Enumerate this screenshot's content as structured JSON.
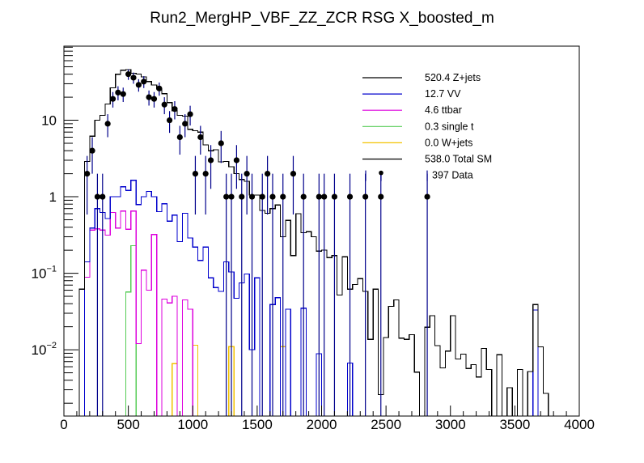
{
  "chart_data": {
    "type": "histogram-stack-log",
    "title": "Run2_MergHP_VBF_ZZ_ZCR RSG  X_boosted_m",
    "xlabel": "",
    "ylabel": "",
    "xlim": [
      0,
      4000
    ],
    "ylim": [
      0.00136,
      93
    ],
    "ylog": true,
    "bin_width": 40,
    "x_ticks": [
      0,
      500,
      1000,
      1500,
      2000,
      2500,
      3000,
      3500,
      4000
    ],
    "x_tick_labels": [
      "0",
      "500",
      "1000",
      "1500",
      "2000",
      "2500",
      "3000",
      "3500",
      "4000"
    ],
    "y_ticks": [
      {
        "value": 10,
        "base": "10",
        "exp": ""
      },
      {
        "value": 1,
        "base": "1",
        "exp": ""
      },
      {
        "value": 0.1,
        "base": "10",
        "exp": "−1"
      },
      {
        "value": 0.01,
        "base": "10",
        "exp": "−2"
      }
    ],
    "grid": false,
    "legend_position": "top-right",
    "series": [
      {
        "name": "Z+jets",
        "legend": "520.4 Z+jets",
        "color": "#000000",
        "values": [
          0,
          0,
          0,
          0.062,
          2.9,
          6.2,
          10.0,
          11.6,
          16.3,
          26.6,
          39.8,
          45,
          46,
          41,
          40,
          36.8,
          32,
          28.9,
          25.7,
          22.2,
          17.0,
          13.3,
          11.6,
          11.3,
          7.6,
          7.3,
          7.0,
          4.75,
          4.0,
          4.1,
          2.85,
          2.9,
          2.46,
          2.01,
          1.68,
          1.59,
          1.05,
          1.05,
          0.66,
          0.61,
          0.7,
          0.78,
          0.3,
          0.49,
          0.17,
          0.6,
          0.34,
          0.35,
          0.3,
          0.195,
          0.2,
          0.16,
          0.17,
          0.052,
          0.164,
          0.062,
          0.071,
          0.085,
          0.058,
          0.0137,
          0.062,
          0.0026,
          0.0144,
          0.037,
          0.045,
          0.0142,
          0.0137,
          0.0157,
          0.0051,
          0,
          0.0197,
          0.0278,
          0.0113,
          0.0058,
          0.0096,
          0.0278,
          0.0076,
          0.0088,
          0.0057,
          0.0064,
          0.0044,
          0.0104,
          0.0055,
          0,
          0.0086,
          0,
          0.0032,
          0,
          0.0055,
          0,
          0.0052,
          0.039,
          0.0109,
          0.0027,
          0,
          0,
          0,
          0,
          0,
          0
        ]
      },
      {
        "name": "VV",
        "legend": "12.7 VV",
        "color": "#0000cc",
        "values": [
          0,
          0,
          0,
          0,
          0.141,
          0.39,
          0.7,
          0.625,
          0.52,
          1.0,
          1.0,
          1.35,
          1.21,
          1.64,
          0.79,
          1.0,
          1.17,
          1.0,
          0.64,
          0.81,
          0.48,
          0.575,
          0.26,
          0.61,
          0.29,
          0.22,
          0.147,
          0.22,
          0.087,
          0.065,
          0.058,
          0.141,
          0.104,
          0.047,
          0.075,
          0.098,
          0.01,
          0.087,
          0,
          0,
          0.039,
          0.048,
          0,
          0.034,
          0,
          0,
          0.035,
          0,
          0,
          0.0089,
          0,
          0,
          0,
          0,
          0,
          0.0067,
          0,
          0,
          0,
          0,
          0,
          0,
          0,
          0,
          0,
          0,
          0,
          0,
          0,
          0,
          0,
          0,
          0,
          0,
          0,
          0,
          0,
          0,
          0,
          0,
          0,
          0,
          0,
          0,
          0,
          0,
          0,
          0,
          0,
          0,
          0,
          0.033,
          0,
          0,
          0,
          0,
          0,
          0,
          0,
          0
        ]
      },
      {
        "name": "ttbar",
        "legend": "4.6 ttbar",
        "color": "#dd00dd",
        "values": [
          0,
          0,
          0,
          0,
          0.089,
          0.366,
          0.38,
          0.366,
          0.316,
          0.625,
          0.39,
          0.65,
          0.375,
          0.65,
          0.012,
          0.11,
          0.06,
          0.32,
          0,
          0.046,
          0.041,
          0.05,
          0,
          0.045,
          0.034,
          0,
          0,
          0,
          0,
          0,
          0,
          0,
          0,
          0,
          0,
          0,
          0,
          0,
          0,
          0,
          0,
          0,
          0,
          0,
          0,
          0,
          0,
          0,
          0,
          0,
          0,
          0,
          0,
          0,
          0,
          0,
          0,
          0,
          0,
          0,
          0,
          0,
          0,
          0,
          0,
          0,
          0,
          0,
          0,
          0,
          0,
          0,
          0,
          0,
          0,
          0,
          0,
          0,
          0,
          0,
          0,
          0,
          0,
          0,
          0,
          0,
          0,
          0,
          0,
          0,
          0,
          0,
          0,
          0,
          0,
          0,
          0,
          0,
          0,
          0
        ]
      },
      {
        "name": "single t",
        "legend": "0.3 single t",
        "color": "#55cc55",
        "values": [
          0,
          0,
          0,
          0,
          0,
          0,
          0,
          0,
          0,
          0,
          0,
          0,
          0.057,
          0.23,
          0,
          0,
          0,
          0,
          0,
          0,
          0,
          0,
          0,
          0,
          0,
          0,
          0,
          0,
          0,
          0,
          0,
          0,
          0,
          0,
          0,
          0,
          0,
          0,
          0,
          0,
          0,
          0,
          0,
          0,
          0,
          0,
          0,
          0,
          0,
          0,
          0,
          0,
          0,
          0,
          0,
          0,
          0,
          0,
          0,
          0,
          0,
          0,
          0,
          0,
          0,
          0,
          0,
          0,
          0,
          0,
          0,
          0,
          0,
          0,
          0,
          0,
          0,
          0,
          0,
          0,
          0,
          0,
          0,
          0,
          0,
          0,
          0,
          0,
          0,
          0,
          0,
          0,
          0,
          0,
          0,
          0,
          0,
          0,
          0,
          0
        ]
      },
      {
        "name": "W+jets",
        "legend": "0.0 W+jets",
        "color": "#f2c200",
        "values": [
          0,
          0,
          0,
          0,
          0,
          0,
          0,
          0,
          0,
          0,
          0,
          0,
          0,
          0,
          0,
          0,
          0,
          0,
          0,
          0,
          0,
          0.0066,
          0,
          0,
          0,
          0.0115,
          0,
          0,
          0,
          0,
          0,
          0,
          0.011,
          0,
          0,
          0,
          0,
          0,
          0,
          0,
          0,
          0,
          0.011,
          0,
          0,
          0,
          0,
          0,
          0,
          0,
          0,
          0,
          0,
          0,
          0,
          0,
          0,
          0,
          0,
          0,
          0,
          0,
          0,
          0,
          0,
          0,
          0,
          0,
          0,
          0,
          0,
          0,
          0,
          0,
          0,
          0,
          0,
          0,
          0,
          0,
          0,
          0,
          0,
          0,
          0,
          0,
          0,
          0,
          0,
          0,
          0,
          0,
          0,
          0,
          0,
          0,
          0,
          0,
          0,
          0
        ]
      },
      {
        "name": "Total SM",
        "legend": "538.0 Total SM",
        "color": "#000000",
        "values": [
          0,
          0,
          0,
          0.062,
          2.9,
          6.2,
          10.0,
          11.6,
          16.3,
          26.6,
          39.8,
          45,
          46,
          41,
          40,
          36.8,
          32,
          28.9,
          25.7,
          22.2,
          17.0,
          13.3,
          11.6,
          11.3,
          7.6,
          7.3,
          7.0,
          4.75,
          4.0,
          4.1,
          2.85,
          2.9,
          2.46,
          2.01,
          1.68,
          1.59,
          1.05,
          1.05,
          0.66,
          0.61,
          0.7,
          0.78,
          0.3,
          0.49,
          0.17,
          0.6,
          0.34,
          0.35,
          0.3,
          0.195,
          0.2,
          0.16,
          0.17,
          0.052,
          0.164,
          0.062,
          0.071,
          0.085,
          0.058,
          0.0137,
          0.062,
          0.0026,
          0.0144,
          0.037,
          0.045,
          0.0142,
          0.0137,
          0.0157,
          0.0051,
          0,
          0.0197,
          0.0278,
          0.0113,
          0.0058,
          0.0096,
          0.0278,
          0.0076,
          0.0088,
          0.0057,
          0.0064,
          0.0044,
          0.0104,
          0.0055,
          0,
          0.0086,
          0,
          0.0032,
          0,
          0.0055,
          0,
          0.0052,
          0.039,
          0.0109,
          0.0027,
          0,
          0,
          0,
          0,
          0,
          0
        ]
      }
    ],
    "data": {
      "name": "Data",
      "legend": "397 Data",
      "marker_color": "#000000",
      "error_color": "#00008b",
      "points": [
        {
          "x": 180,
          "y": 2
        },
        {
          "x": 220,
          "y": 4
        },
        {
          "x": 260,
          "y": 1
        },
        {
          "x": 300,
          "y": 1
        },
        {
          "x": 340,
          "y": 9
        },
        {
          "x": 380,
          "y": 19
        },
        {
          "x": 420,
          "y": 23
        },
        {
          "x": 460,
          "y": 22
        },
        {
          "x": 500,
          "y": 40
        },
        {
          "x": 540,
          "y": 36
        },
        {
          "x": 580,
          "y": 29
        },
        {
          "x": 620,
          "y": 32
        },
        {
          "x": 660,
          "y": 20
        },
        {
          "x": 700,
          "y": 19
        },
        {
          "x": 740,
          "y": 26
        },
        {
          "x": 780,
          "y": 16
        },
        {
          "x": 820,
          "y": 10
        },
        {
          "x": 860,
          "y": 14
        },
        {
          "x": 900,
          "y": 6
        },
        {
          "x": 940,
          "y": 9
        },
        {
          "x": 980,
          "y": 12
        },
        {
          "x": 1020,
          "y": 2
        },
        {
          "x": 1060,
          "y": 6
        },
        {
          "x": 1100,
          "y": 2
        },
        {
          "x": 1140,
          "y": 3
        },
        {
          "x": 1220,
          "y": 5
        },
        {
          "x": 1260,
          "y": 1
        },
        {
          "x": 1300,
          "y": 1
        },
        {
          "x": 1340,
          "y": 3
        },
        {
          "x": 1380,
          "y": 1
        },
        {
          "x": 1420,
          "y": 2
        },
        {
          "x": 1460,
          "y": 1
        },
        {
          "x": 1540,
          "y": 1
        },
        {
          "x": 1580,
          "y": 2
        },
        {
          "x": 1620,
          "y": 1
        },
        {
          "x": 1700,
          "y": 1
        },
        {
          "x": 1780,
          "y": 2
        },
        {
          "x": 1860,
          "y": 1
        },
        {
          "x": 1980,
          "y": 1
        },
        {
          "x": 2020,
          "y": 1
        },
        {
          "x": 2100,
          "y": 1
        },
        {
          "x": 2220,
          "y": 1
        },
        {
          "x": 2340,
          "y": 1
        },
        {
          "x": 2460,
          "y": 1
        },
        {
          "x": 2820,
          "y": 1
        }
      ]
    }
  }
}
